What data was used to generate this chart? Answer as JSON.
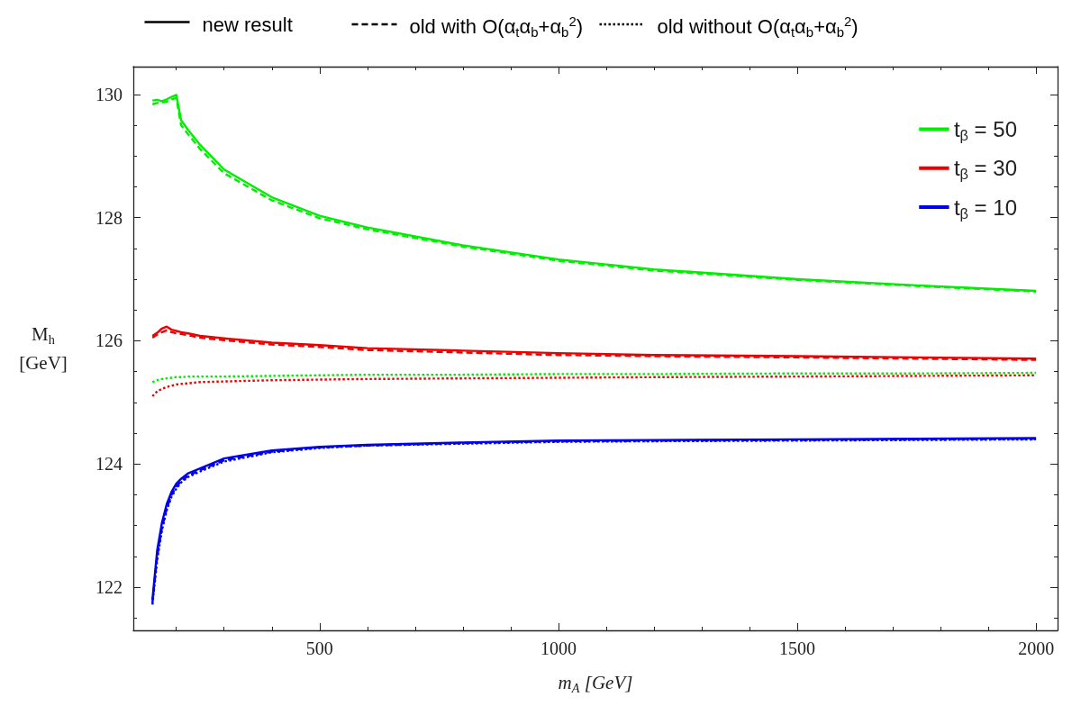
{
  "chart_data": {
    "type": "line",
    "xlabel": "m$_{A}$ [GeV]",
    "ylabel": "M$_{h}$\n[GeV]",
    "x": [
      150,
      160,
      170,
      180,
      190,
      200,
      210,
      225,
      250,
      300,
      400,
      500,
      600,
      800,
      1000,
      1200,
      1500,
      1750,
      2000
    ],
    "series": [
      {
        "name": "t$_{β}$ = 50",
        "color": "#00ee00",
        "line_style": "solid",
        "values": [
          129.9,
          129.91,
          129.89,
          129.92,
          129.96,
          129.99,
          129.58,
          129.42,
          129.18,
          128.78,
          128.33,
          128.03,
          127.84,
          127.55,
          127.32,
          127.16,
          127.0,
          126.9,
          126.81
        ]
      },
      {
        "color": "#00ee00",
        "line_style": "dashed",
        "values": [
          129.84,
          129.86,
          129.87,
          129.88,
          129.92,
          129.94,
          129.5,
          129.35,
          129.11,
          128.72,
          128.28,
          127.99,
          127.81,
          127.53,
          127.3,
          127.14,
          126.99,
          126.89,
          126.8
        ]
      },
      {
        "color": "#00ee00",
        "line_style": "dotted",
        "values": [
          125.33,
          125.36,
          125.38,
          125.39,
          125.4,
          125.41,
          125.41,
          125.42,
          125.42,
          125.42,
          125.43,
          125.44,
          125.45,
          125.45,
          125.46,
          125.46,
          125.47,
          125.47,
          125.48
        ]
      },
      {
        "name": "t$_{β}$ = 30",
        "color": "#ee0000",
        "line_style": "solid",
        "values": [
          126.08,
          126.13,
          126.2,
          126.23,
          126.18,
          126.16,
          126.14,
          126.12,
          126.08,
          126.04,
          125.97,
          125.93,
          125.88,
          125.84,
          125.8,
          125.77,
          125.75,
          125.73,
          125.71
        ]
      },
      {
        "color": "#ee0000",
        "line_style": "dashed",
        "values": [
          126.05,
          126.1,
          126.14,
          126.17,
          126.14,
          126.12,
          126.11,
          126.09,
          126.05,
          126.01,
          125.94,
          125.9,
          125.85,
          125.81,
          125.77,
          125.75,
          125.73,
          125.71,
          125.69
        ]
      },
      {
        "color": "#ee0000",
        "line_style": "dotted",
        "values": [
          125.1,
          125.18,
          125.22,
          125.25,
          125.27,
          125.29,
          125.3,
          125.31,
          125.33,
          125.34,
          125.36,
          125.37,
          125.38,
          125.39,
          125.4,
          125.41,
          125.42,
          125.43,
          125.44
        ]
      },
      {
        "name": "t$_{β}$ = 10",
        "color": "#0000ee",
        "line_style": "solid",
        "values": [
          121.8,
          122.6,
          123.05,
          123.35,
          123.55,
          123.68,
          123.76,
          123.85,
          123.93,
          124.09,
          124.22,
          124.28,
          124.31,
          124.35,
          124.38,
          124.39,
          124.4,
          124.41,
          124.42
        ]
      },
      {
        "color": "#0000ee",
        "line_style": "dashed",
        "values": [
          121.75,
          122.5,
          122.97,
          123.28,
          123.5,
          123.63,
          123.72,
          123.81,
          123.9,
          124.06,
          124.2,
          124.27,
          124.3,
          124.34,
          124.37,
          124.38,
          124.39,
          124.4,
          124.41
        ]
      },
      {
        "color": "#0000ee",
        "line_style": "dotted",
        "values": [
          121.72,
          122.45,
          122.93,
          123.25,
          123.47,
          123.6,
          123.7,
          123.79,
          123.88,
          124.04,
          124.19,
          124.26,
          124.3,
          124.33,
          124.36,
          124.37,
          124.38,
          124.39,
          124.4
        ]
      }
    ],
    "annotations": [
      "new result",
      "old with O(α$_{t}$α$_{b}$+α$_{b}$$^{2}$)",
      "old without O(α$_{t}$α$_{b}$+α$_{b}$$^{2}$)"
    ],
    "xlim": [
      110,
      2045
    ],
    "ylim": [
      121.3,
      130.45
    ],
    "xticks": [
      500,
      1000,
      1500,
      2000
    ],
    "yticks": [
      122,
      124,
      126,
      128,
      130
    ],
    "grid": false,
    "legend": "top right",
    "marker": "none"
  }
}
